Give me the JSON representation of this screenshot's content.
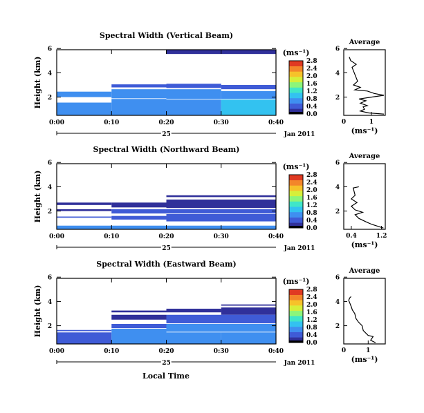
{
  "units_label": "(ms⁻¹)",
  "date_label": "Jan 2011",
  "time_xlabel": "Local Time",
  "x_ticks": [
    "0:00",
    "0:10",
    "0:20",
    "0:30",
    "0:40"
  ],
  "day_label": "25",
  "colormap": [
    "#30309a",
    "#3f5bd6",
    "#3f8ff0",
    "#33c2f0",
    "#40e6c8",
    "#8cf57a",
    "#d6ef3a",
    "#f6c22a",
    "#f3862a",
    "#e03a22"
  ],
  "chart_data": [
    {
      "type": "heatmap",
      "title": "Spectral Width (Vertical Beam)",
      "ylabel": "Height (km)",
      "xlim_minutes": [
        0,
        40
      ],
      "ylim_km": [
        0.5,
        5.9
      ],
      "y_ticks": [
        2,
        4,
        6
      ],
      "y_tick_labels": [
        "2",
        "4",
        "6"
      ],
      "colorbar_ticks": [
        "0.0",
        "0.4",
        "0.8",
        "1.2",
        "1.6",
        "2.0",
        "2.4",
        "2.8"
      ],
      "colorbar_max": 2.8,
      "cells": [
        {
          "t0": 20,
          "t1": 40,
          "h0": 5.55,
          "h1": 5.9,
          "v": 0.1
        },
        {
          "t0": 10,
          "t1": 20,
          "h0": 2.8,
          "h1": 3.05,
          "v": 0.4
        },
        {
          "t0": 20,
          "t1": 30,
          "h0": 2.75,
          "h1": 3.1,
          "v": 0.4
        },
        {
          "t0": 30,
          "t1": 40,
          "h0": 2.65,
          "h1": 3.0,
          "v": 0.4
        },
        {
          "t0": 0,
          "t1": 10,
          "h0": 2.0,
          "h1": 2.45,
          "v": 0.8
        },
        {
          "t0": 10,
          "t1": 20,
          "h0": 1.9,
          "h1": 2.65,
          "v": 0.6
        },
        {
          "t0": 20,
          "t1": 30,
          "h0": 1.85,
          "h1": 2.65,
          "v": 0.6
        },
        {
          "t0": 30,
          "t1": 40,
          "h0": 1.85,
          "h1": 2.5,
          "v": 0.8
        },
        {
          "t0": 0,
          "t1": 10,
          "h0": 0.5,
          "h1": 1.55,
          "v": 0.6
        },
        {
          "t0": 10,
          "t1": 20,
          "h0": 0.5,
          "h1": 1.85,
          "v": 0.7
        },
        {
          "t0": 20,
          "t1": 30,
          "h0": 0.5,
          "h1": 1.8,
          "v": 0.8
        },
        {
          "t0": 30,
          "t1": 40,
          "h0": 0.5,
          "h1": 1.8,
          "v": 0.9
        }
      ],
      "average": {
        "title": "Average",
        "xlabel": "(ms⁻¹)",
        "xlim": [
          0,
          1.5
        ],
        "x_ticks": [
          0,
          1
        ],
        "y_ticks": [
          2,
          4,
          6
        ],
        "profile": [
          [
            0.2,
            5.3
          ],
          [
            0.25,
            5.0
          ],
          [
            0.45,
            4.7
          ],
          [
            0.3,
            4.45
          ],
          [
            0.5,
            3.3
          ],
          [
            0.35,
            3.0
          ],
          [
            0.6,
            2.8
          ],
          [
            0.4,
            2.6
          ],
          [
            0.85,
            2.5
          ],
          [
            1.1,
            2.3
          ],
          [
            1.45,
            2.15
          ],
          [
            1.0,
            2.0
          ],
          [
            0.55,
            1.85
          ],
          [
            0.8,
            1.7
          ],
          [
            0.6,
            1.5
          ],
          [
            0.85,
            1.3
          ],
          [
            0.7,
            1.2
          ],
          [
            0.75,
            1.0
          ],
          [
            0.6,
            0.85
          ],
          [
            0.9,
            0.7
          ],
          [
            1.45,
            0.6
          ]
        ]
      }
    },
    {
      "type": "heatmap",
      "title": "Spectral Width (Northward Beam)",
      "ylabel": "Height (km)",
      "xlim_minutes": [
        0,
        40
      ],
      "ylim_km": [
        0.5,
        5.9
      ],
      "y_ticks": [
        2,
        4,
        6
      ],
      "y_tick_labels": [
        "2",
        "4",
        "6"
      ],
      "colorbar_ticks": [
        "0.0",
        "0.4",
        "0.8",
        "1.2",
        "1.6",
        "2.0",
        "2.4",
        "2.8"
      ],
      "colorbar_max": 2.8,
      "cells": [
        {
          "t0": 20,
          "t1": 40,
          "h0": 3.15,
          "h1": 3.3,
          "v": 0.2
        },
        {
          "t0": 0,
          "t1": 10,
          "h0": 2.5,
          "h1": 2.7,
          "v": 0.2
        },
        {
          "t0": 10,
          "t1": 20,
          "h0": 2.3,
          "h1": 2.7,
          "v": 0.2
        },
        {
          "t0": 20,
          "t1": 40,
          "h0": 2.25,
          "h1": 2.95,
          "v": 0.25
        },
        {
          "t0": 0,
          "t1": 10,
          "h0": 2.0,
          "h1": 2.15,
          "v": 0.2
        },
        {
          "t0": 10,
          "t1": 40,
          "h0": 1.8,
          "h1": 2.15,
          "v": 0.3
        },
        {
          "t0": 0,
          "t1": 10,
          "h0": 1.45,
          "h1": 1.55,
          "v": 0.3
        },
        {
          "t0": 10,
          "t1": 20,
          "h0": 1.3,
          "h1": 1.6,
          "v": 0.3
        },
        {
          "t0": 20,
          "t1": 40,
          "h0": 1.15,
          "h1": 1.75,
          "v": 0.4
        },
        {
          "t0": 0,
          "t1": 40,
          "h0": 0.5,
          "h1": 0.8,
          "v": 0.6
        }
      ],
      "average": {
        "title": "Average",
        "xlabel": "(ms⁻¹)",
        "xlim": [
          0.2,
          1.3
        ],
        "x_ticks": [
          0.4,
          1.2
        ],
        "y_ticks": [
          2,
          4,
          6
        ],
        "profile": [
          [
            0.6,
            4.0
          ],
          [
            0.45,
            3.9
          ],
          [
            0.5,
            3.3
          ],
          [
            0.4,
            3.0
          ],
          [
            0.55,
            2.7
          ],
          [
            0.4,
            2.4
          ],
          [
            0.5,
            2.1
          ],
          [
            0.7,
            1.9
          ],
          [
            0.5,
            1.7
          ],
          [
            0.6,
            1.4
          ],
          [
            0.8,
            1.1
          ],
          [
            0.95,
            0.9
          ],
          [
            1.1,
            0.75
          ],
          [
            1.25,
            0.6
          ]
        ]
      }
    },
    {
      "type": "heatmap",
      "title": "Spectral Width (Eastward Beam)",
      "ylabel": "Height (km)",
      "xlim_minutes": [
        0,
        40
      ],
      "ylim_km": [
        0.5,
        5.9
      ],
      "y_ticks": [
        2,
        4,
        6
      ],
      "y_tick_labels": [
        "2",
        "4",
        "6"
      ],
      "colorbar_ticks": [
        "0.0",
        "0.4",
        "0.8",
        "1.2",
        "1.6",
        "2.0",
        "2.4",
        "2.8"
      ],
      "colorbar_max": 2.8,
      "cells": [
        {
          "t0": 30,
          "t1": 40,
          "h0": 3.65,
          "h1": 3.75,
          "v": 0.2
        },
        {
          "t0": 10,
          "t1": 20,
          "h0": 3.1,
          "h1": 3.25,
          "v": 0.2
        },
        {
          "t0": 20,
          "t1": 30,
          "h0": 3.1,
          "h1": 3.4,
          "v": 0.2
        },
        {
          "t0": 30,
          "t1": 40,
          "h0": 2.9,
          "h1": 3.5,
          "v": 0.25
        },
        {
          "t0": 10,
          "t1": 20,
          "h0": 2.5,
          "h1": 2.9,
          "v": 0.25
        },
        {
          "t0": 20,
          "t1": 40,
          "h0": 2.2,
          "h1": 2.9,
          "v": 0.3
        },
        {
          "t0": 10,
          "t1": 20,
          "h0": 1.8,
          "h1": 2.15,
          "v": 0.4
        },
        {
          "t0": 0,
          "t1": 10,
          "h0": 1.55,
          "h1": 1.65,
          "v": 0.35
        },
        {
          "t0": 20,
          "t1": 40,
          "h0": 1.5,
          "h1": 2.15,
          "v": 0.6
        },
        {
          "t0": 0,
          "t1": 10,
          "h0": 0.5,
          "h1": 1.45,
          "v": 0.55
        },
        {
          "t0": 10,
          "t1": 20,
          "h0": 0.5,
          "h1": 1.75,
          "v": 0.6
        },
        {
          "t0": 20,
          "t1": 30,
          "h0": 0.5,
          "h1": 1.45,
          "v": 0.75
        },
        {
          "t0": 30,
          "t1": 40,
          "h0": 0.5,
          "h1": 1.45,
          "v": 0.8
        }
      ],
      "average": {
        "title": "Average",
        "xlabel": "(ms⁻¹)",
        "xlim": [
          0,
          1.7
        ],
        "x_ticks": [
          0,
          1
        ],
        "y_ticks": [
          2,
          4,
          6
        ],
        "profile": [
          [
            0.3,
            4.4
          ],
          [
            0.25,
            4.3
          ],
          [
            0.2,
            4.1
          ],
          [
            0.3,
            3.6
          ],
          [
            0.35,
            3.3
          ],
          [
            0.45,
            3.0
          ],
          [
            0.5,
            2.6
          ],
          [
            0.6,
            2.3
          ],
          [
            0.75,
            2.0
          ],
          [
            0.8,
            1.6
          ],
          [
            0.9,
            1.4
          ],
          [
            1.0,
            1.2
          ],
          [
            1.2,
            1.1
          ],
          [
            1.1,
            0.8
          ],
          [
            1.3,
            0.6
          ]
        ]
      }
    }
  ]
}
